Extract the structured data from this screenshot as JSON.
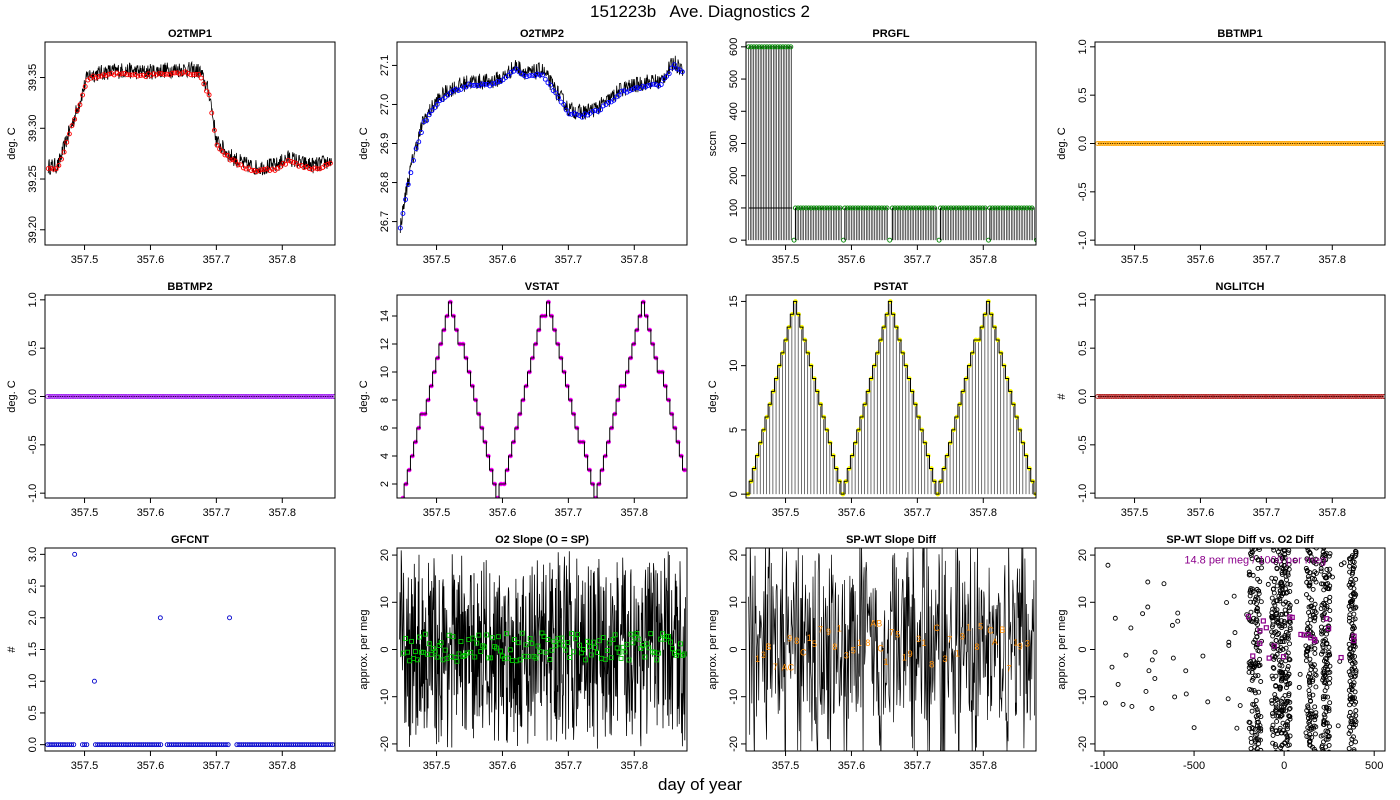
{
  "page": {
    "title": "151223b   Ave. Diagnostics 2",
    "xlabel_common": "day of year"
  },
  "chart_data": [
    {
      "id": "o2tmp1",
      "type": "line",
      "title": "O2TMP1",
      "ylabel": "deg. C",
      "xlim": [
        357.44,
        357.88
      ],
      "ylim": [
        39.185,
        39.385
      ],
      "xticks": [
        357.5,
        357.6,
        357.7,
        357.8
      ],
      "xtick_labels": [
        "357.5",
        "357.6",
        "357.7",
        "357.8"
      ],
      "yticks": [
        39.2,
        39.25,
        39.3,
        39.35
      ],
      "ytick_labels": [
        "39.20",
        "39.25",
        "39.30",
        "39.35"
      ],
      "point_color": "#ff0000",
      "points": [
        [
          357.445,
          39.259
        ],
        [
          357.46,
          39.26
        ],
        [
          357.475,
          39.29
        ],
        [
          357.49,
          39.318
        ],
        [
          357.505,
          39.349
        ],
        [
          357.53,
          39.352
        ],
        [
          357.56,
          39.354
        ],
        [
          357.59,
          39.352
        ],
        [
          357.62,
          39.354
        ],
        [
          357.65,
          39.355
        ],
        [
          357.675,
          39.353
        ],
        [
          357.69,
          39.33
        ],
        [
          357.7,
          39.284
        ],
        [
          357.72,
          39.27
        ],
        [
          357.74,
          39.262
        ],
        [
          357.76,
          39.258
        ],
        [
          357.79,
          39.26
        ],
        [
          357.81,
          39.268
        ],
        [
          357.83,
          39.262
        ],
        [
          357.85,
          39.26
        ],
        [
          357.875,
          39.265
        ]
      ]
    },
    {
      "id": "o2tmp2",
      "type": "line",
      "title": "O2TMP2",
      "ylabel": "deg. C",
      "xlim": [
        357.44,
        357.88
      ],
      "ylim": [
        26.64,
        27.16
      ],
      "xticks": [
        357.5,
        357.6,
        357.7,
        357.8
      ],
      "xtick_labels": [
        "357.5",
        "357.6",
        "357.7",
        "357.8"
      ],
      "yticks": [
        26.7,
        26.8,
        26.9,
        27.0,
        27.1
      ],
      "ytick_labels": [
        "26.7",
        "26.8",
        "26.9",
        "27.0",
        "27.1"
      ],
      "point_color": "#0000ff",
      "points": [
        [
          357.445,
          26.68
        ],
        [
          357.455,
          26.78
        ],
        [
          357.465,
          26.86
        ],
        [
          357.48,
          26.95
        ],
        [
          357.5,
          27.0
        ],
        [
          357.52,
          27.03
        ],
        [
          357.55,
          27.05
        ],
        [
          357.58,
          27.05
        ],
        [
          357.6,
          27.06
        ],
        [
          357.62,
          27.09
        ],
        [
          357.64,
          27.07
        ],
        [
          357.66,
          27.08
        ],
        [
          357.68,
          27.03
        ],
        [
          357.7,
          26.98
        ],
        [
          357.72,
          26.97
        ],
        [
          357.74,
          26.98
        ],
        [
          357.76,
          27.0
        ],
        [
          357.78,
          27.03
        ],
        [
          357.8,
          27.04
        ],
        [
          357.82,
          27.05
        ],
        [
          357.84,
          27.05
        ],
        [
          357.86,
          27.1
        ],
        [
          357.875,
          27.08
        ]
      ]
    },
    {
      "id": "prgfl",
      "type": "line",
      "title": "PRGFL",
      "ylabel": "sccm",
      "xlim": [
        357.44,
        357.88
      ],
      "ylim": [
        -15,
        615
      ],
      "xticks": [
        357.5,
        357.6,
        357.7,
        357.8
      ],
      "xtick_labels": [
        "357.5",
        "357.6",
        "357.7",
        "357.8"
      ],
      "yticks": [
        0,
        100,
        200,
        300,
        400,
        500,
        600
      ],
      "ytick_labels": [
        "0",
        "100",
        "200",
        "300",
        "400",
        "500",
        "600"
      ],
      "point_color": "#008800",
      "segments": [
        {
          "x0": 357.444,
          "x1": 357.51,
          "y": 600
        },
        {
          "x0": 357.515,
          "x1": 357.585,
          "y": 100
        },
        {
          "x0": 357.59,
          "x1": 357.655,
          "y": 100
        },
        {
          "x0": 357.662,
          "x1": 357.73,
          "y": 100
        },
        {
          "x0": 357.735,
          "x1": 357.805,
          "y": 100
        },
        {
          "x0": 357.81,
          "x1": 357.878,
          "y": 100
        }
      ]
    },
    {
      "id": "bbtmp1",
      "type": "line",
      "title": "BBTMP1",
      "ylabel": "deg. C",
      "xlim": [
        357.44,
        357.88
      ],
      "ylim": [
        -1.05,
        1.05
      ],
      "xticks": [
        357.5,
        357.6,
        357.7,
        357.8
      ],
      "xtick_labels": [
        "357.5",
        "357.6",
        "357.7",
        "357.8"
      ],
      "yticks": [
        -1,
        -0.5,
        0,
        0.5,
        1
      ],
      "ytick_labels": [
        "-1.0",
        "-0.5",
        "0.0",
        "0.5",
        "1.0"
      ],
      "point_color": "#ffa500",
      "constant": 0
    },
    {
      "id": "bbtmp2",
      "type": "line",
      "title": "BBTMP2",
      "ylabel": "deg. C",
      "xlim": [
        357.44,
        357.88
      ],
      "ylim": [
        -1.05,
        1.05
      ],
      "xticks": [
        357.5,
        357.6,
        357.7,
        357.8
      ],
      "xtick_labels": [
        "357.5",
        "357.6",
        "357.7",
        "357.8"
      ],
      "yticks": [
        -1,
        -0.5,
        0,
        0.5,
        1
      ],
      "ytick_labels": [
        "-1.0",
        "-0.5",
        "0.0",
        "0.5",
        "1.0"
      ],
      "point_color": "#a020f0",
      "constant": 0
    },
    {
      "id": "vstat",
      "type": "line",
      "title": "VSTAT",
      "ylabel": "deg. C",
      "xlim": [
        357.44,
        357.88
      ],
      "ylim": [
        1,
        15.5
      ],
      "xticks": [
        357.5,
        357.6,
        357.7,
        357.8
      ],
      "xtick_labels": [
        "357.5",
        "357.6",
        "357.7",
        "357.8"
      ],
      "yticks": [
        2,
        4,
        6,
        8,
        10,
        12,
        14
      ],
      "ytick_labels": [
        "2",
        "4",
        "6",
        "8",
        "10",
        "12",
        "14"
      ],
      "point_color": "#ff00ff",
      "period": 0.146,
      "phase": 357.446,
      "wave_min": 1,
      "wave_max": 15,
      "wave_end": 357.875
    },
    {
      "id": "pstat",
      "type": "line",
      "title": "PSTAT",
      "ylabel": "deg. C",
      "xlim": [
        357.44,
        357.88
      ],
      "ylim": [
        -0.3,
        15.5
      ],
      "xticks": [
        357.5,
        357.6,
        357.7,
        357.8
      ],
      "xtick_labels": [
        "357.5",
        "357.6",
        "357.7",
        "357.8"
      ],
      "yticks": [
        0,
        5,
        10,
        15
      ],
      "ytick_labels": [
        "0",
        "5",
        "10",
        "15"
      ],
      "point_color": "#ffff00",
      "period": 0.145,
      "phase": 357.44,
      "wave_min": 0,
      "wave_max": 15,
      "wave_end": 357.88
    },
    {
      "id": "nglitch",
      "type": "line",
      "title": "NGLITCH",
      "ylabel": "#",
      "xlim": [
        357.44,
        357.88
      ],
      "ylim": [
        -1.05,
        1.05
      ],
      "xticks": [
        357.5,
        357.6,
        357.7,
        357.8
      ],
      "xtick_labels": [
        "357.5",
        "357.6",
        "357.7",
        "357.8"
      ],
      "yticks": [
        -1,
        -0.5,
        0,
        0.5,
        1
      ],
      "ytick_labels": [
        "-1.0",
        "-0.5",
        "0.0",
        "0.5",
        "1.0"
      ],
      "point_color": "#b22222",
      "constant": 0
    },
    {
      "id": "gfcnt",
      "type": "scatter",
      "title": "GFCNT",
      "ylabel": "#",
      "xlim": [
        357.44,
        357.88
      ],
      "ylim": [
        -0.1,
        3.1
      ],
      "xticks": [
        357.5,
        357.6,
        357.7,
        357.8
      ],
      "xtick_labels": [
        "357.5",
        "357.6",
        "357.7",
        "357.8"
      ],
      "yticks": [
        0,
        0.5,
        1,
        1.5,
        2,
        2.5,
        3
      ],
      "ytick_labels": [
        "0.0",
        "0.5",
        "1.0",
        "1.5",
        "2.0",
        "2.5",
        "3.0"
      ],
      "point_color": "#0000cc",
      "spikes": [
        [
          357.485,
          3
        ],
        [
          357.515,
          1
        ],
        [
          357.615,
          2
        ],
        [
          357.72,
          2
        ]
      ],
      "gaps": [
        357.49,
        357.51,
        357.62,
        357.725
      ]
    },
    {
      "id": "o2slope",
      "type": "line",
      "title": "O2 Slope (O = SP)",
      "ylabel": "approx. per meg",
      "xlim": [
        357.44,
        357.88
      ],
      "ylim": [
        -21.5,
        21.5
      ],
      "xticks": [
        357.5,
        357.6,
        357.7,
        357.8
      ],
      "xtick_labels": [
        "357.5",
        "357.6",
        "357.7",
        "357.8"
      ],
      "yticks": [
        -20,
        -10,
        0,
        10,
        20
      ],
      "ytick_labels": [
        "-20",
        "-10",
        "0",
        "10",
        "20"
      ],
      "point_color": "#00cc00",
      "point_center": 0.5,
      "point_spread": 3
    },
    {
      "id": "spwtdiff",
      "type": "line",
      "title": "SP-WT Slope Diff",
      "ylabel": "approx. per meg",
      "xlim": [
        357.44,
        357.88
      ],
      "ylim": [
        -21.5,
        21.5
      ],
      "xticks": [
        357.5,
        357.6,
        357.7,
        357.8
      ],
      "xtick_labels": [
        "357.5",
        "357.6",
        "357.7",
        "357.8"
      ],
      "yticks": [
        -20,
        -10,
        0,
        10,
        20
      ],
      "ytick_labels": [
        "-20",
        "-10",
        "0",
        "10",
        "20"
      ],
      "label_color": "#ff8c00",
      "labels": [
        "1",
        "3",
        "B",
        "7",
        "AC",
        "9",
        "8",
        "C",
        "1",
        "5",
        "7",
        "9",
        "8",
        "1",
        "3",
        "5",
        "1",
        "8",
        "AB",
        "C",
        "1",
        "7",
        "5",
        "1",
        "9",
        "3",
        "1",
        "8",
        "C",
        "3",
        "7",
        "1",
        "9",
        "1",
        "8",
        "5",
        "C",
        "A",
        "B",
        "7",
        "1",
        "9",
        "3"
      ]
    },
    {
      "id": "spwtvso2",
      "type": "scatter",
      "title": "SP-WT Slope Diff vs. O2 Diff",
      "ylabel": "approx. per meg",
      "xlim": [
        -1050,
        560
      ],
      "ylim": [
        -21.5,
        21.5
      ],
      "xticks": [
        -1000,
        -500,
        0,
        500
      ],
      "xtick_labels": [
        "-1000",
        "-500",
        "0",
        "500"
      ],
      "yticks": [
        -20,
        -10,
        0,
        10,
        20
      ],
      "ytick_labels": [
        "-20",
        "-10",
        "0",
        "10",
        "20"
      ],
      "annotation": "14.8 per meg / 1000 per meg",
      "annotation_color": "#8b008b",
      "columns": [
        -160,
        -40,
        10,
        150,
        230,
        380
      ],
      "column_spread": [
        35,
        30,
        25,
        30,
        25,
        20
      ]
    }
  ]
}
